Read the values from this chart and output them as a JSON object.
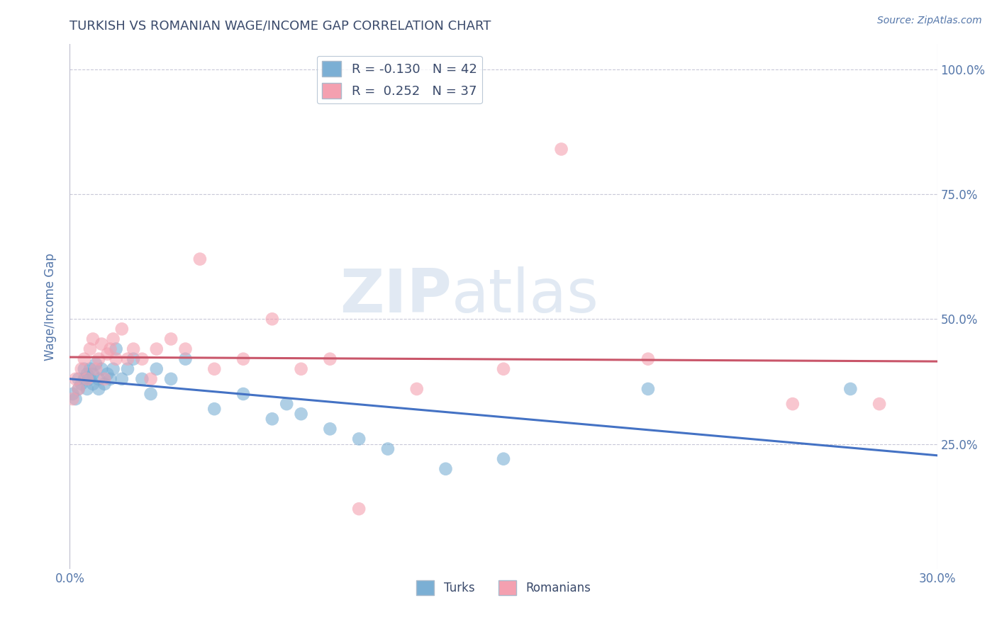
{
  "title": "TURKISH VS ROMANIAN WAGE/INCOME GAP CORRELATION CHART",
  "source": "Source: ZipAtlas.com",
  "ylabel": "Wage/Income Gap",
  "xlim": [
    0.0,
    0.3
  ],
  "ylim": [
    0.0,
    1.05
  ],
  "yticks": [
    0.25,
    0.5,
    0.75,
    1.0
  ],
  "ytick_labels": [
    "25.0%",
    "50.0%",
    "75.0%",
    "100.0%"
  ],
  "xticks": [
    0.0,
    0.05,
    0.1,
    0.15,
    0.2,
    0.25,
    0.3
  ],
  "xtick_labels": [
    "0.0%",
    "",
    "",
    "",
    "",
    "",
    "30.0%"
  ],
  "turks_R": -0.13,
  "turks_N": 42,
  "romanians_R": 0.252,
  "romanians_N": 37,
  "turks_color": "#7BAFD4",
  "romanians_color": "#F4A0B0",
  "turks_line_color": "#4472C4",
  "romanians_line_color": "#C9566A",
  "background_color": "#FFFFFF",
  "grid_color": "#C8C8D8",
  "title_color": "#3A4A6B",
  "axis_label_color": "#5577AA",
  "watermark_zip": "ZIP",
  "watermark_atlas": "atlas",
  "turks_x": [
    0.001,
    0.002,
    0.003,
    0.003,
    0.004,
    0.005,
    0.005,
    0.006,
    0.006,
    0.007,
    0.007,
    0.008,
    0.008,
    0.009,
    0.01,
    0.01,
    0.011,
    0.012,
    0.013,
    0.014,
    0.015,
    0.016,
    0.018,
    0.02,
    0.022,
    0.025,
    0.028,
    0.03,
    0.035,
    0.04,
    0.05,
    0.06,
    0.07,
    0.075,
    0.08,
    0.09,
    0.1,
    0.11,
    0.13,
    0.15,
    0.2,
    0.27
  ],
  "turks_y": [
    0.35,
    0.34,
    0.36,
    0.38,
    0.37,
    0.4,
    0.38,
    0.36,
    0.39,
    0.38,
    0.4,
    0.37,
    0.39,
    0.41,
    0.36,
    0.38,
    0.4,
    0.37,
    0.39,
    0.38,
    0.4,
    0.44,
    0.38,
    0.4,
    0.42,
    0.38,
    0.35,
    0.4,
    0.38,
    0.42,
    0.32,
    0.35,
    0.3,
    0.33,
    0.31,
    0.28,
    0.26,
    0.24,
    0.2,
    0.22,
    0.36,
    0.36
  ],
  "romanians_x": [
    0.001,
    0.002,
    0.003,
    0.004,
    0.005,
    0.006,
    0.007,
    0.008,
    0.009,
    0.01,
    0.011,
    0.012,
    0.013,
    0.014,
    0.015,
    0.016,
    0.018,
    0.02,
    0.022,
    0.025,
    0.028,
    0.03,
    0.035,
    0.04,
    0.045,
    0.05,
    0.06,
    0.07,
    0.08,
    0.09,
    0.1,
    0.12,
    0.15,
    0.17,
    0.2,
    0.25,
    0.28
  ],
  "romanians_y": [
    0.34,
    0.38,
    0.36,
    0.4,
    0.42,
    0.38,
    0.44,
    0.46,
    0.4,
    0.42,
    0.45,
    0.38,
    0.43,
    0.44,
    0.46,
    0.42,
    0.48,
    0.42,
    0.44,
    0.42,
    0.38,
    0.44,
    0.46,
    0.44,
    0.62,
    0.4,
    0.42,
    0.5,
    0.4,
    0.42,
    0.12,
    0.36,
    0.4,
    0.84,
    0.42,
    0.33,
    0.33
  ]
}
